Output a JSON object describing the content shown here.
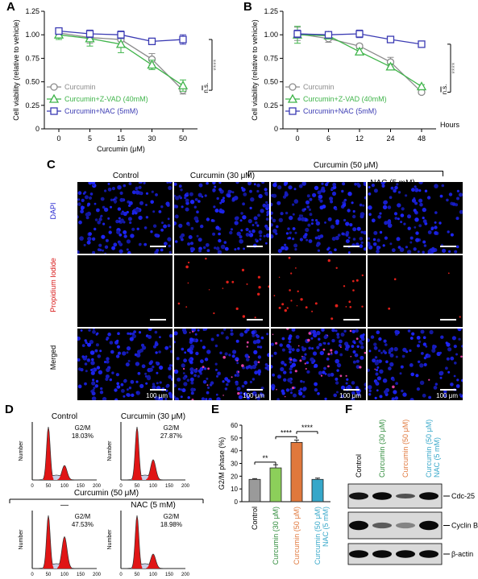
{
  "panels": {
    "A": "A",
    "B": "B",
    "C": "C",
    "D": "D",
    "E": "E",
    "F": "F"
  },
  "colors": {
    "curcumin": "#8c8c8c",
    "zvad": "#3fb44a",
    "nac": "#3a3ab3",
    "orange": "#e0783c",
    "cyan": "#36a7c9",
    "green": "#2e8b3a"
  },
  "chartA": {
    "chart_data": {
      "type": "line",
      "x": [
        0,
        5,
        15,
        30,
        50
      ],
      "xlabel": "Curcumin (μM)",
      "ylabel": "Cell viability (relative to vehicle)",
      "ylim": [
        0,
        1.25
      ],
      "yticks": [
        "0",
        "0.25",
        "0.50",
        "0.75",
        "1.00",
        "1.25"
      ],
      "xticks": [
        "0",
        "5",
        "15",
        "30",
        "50"
      ],
      "series": [
        {
          "name": "Curcumin",
          "values": [
            1.02,
            0.97,
            0.95,
            0.74,
            0.41
          ],
          "err": [
            0.04,
            0.06,
            0.08,
            0.06,
            0.04
          ]
        },
        {
          "name": "Curcumin+Z-VAD (40mM)",
          "values": [
            1.0,
            0.96,
            0.9,
            0.68,
            0.46
          ],
          "err": [
            0.05,
            0.08,
            0.09,
            0.05,
            0.06
          ]
        },
        {
          "name": "Curcumin+NAC (5mM)",
          "values": [
            1.04,
            1.01,
            1.0,
            0.93,
            0.95
          ],
          "err": [
            0.03,
            0.04,
            0.04,
            0.02,
            0.05
          ]
        }
      ]
    },
    "sig_top": "****",
    "sig_ns": "n.s."
  },
  "chartB": {
    "chart_data": {
      "type": "line",
      "x": [
        0,
        6,
        12,
        24,
        48
      ],
      "xlabel": "Hours",
      "ylabel": "Cell viability (relative to vehicle)",
      "ylim": [
        0,
        1.25
      ],
      "yticks": [
        "0",
        "0.25",
        "0.50",
        "0.75",
        "1.00",
        "1.25"
      ],
      "xticks": [
        "0",
        "6",
        "12",
        "24",
        "48"
      ],
      "series": [
        {
          "name": "Curcumin",
          "values": [
            1.01,
            0.96,
            0.88,
            0.71,
            0.39
          ],
          "err": [
            0.07,
            0.04,
            0.02,
            0.05,
            0.02
          ]
        },
        {
          "name": "Curcumin+Z-VAD (40mM)",
          "values": [
            1.0,
            0.99,
            0.82,
            0.66,
            0.45
          ],
          "err": [
            0.09,
            0.02,
            0.03,
            0.03,
            0.02
          ]
        },
        {
          "name": "Curcumin+NAC (5mM)",
          "values": [
            1.01,
            1.0,
            1.01,
            0.95,
            0.9
          ],
          "err": [
            0.04,
            0.03,
            0.04,
            0.02,
            0.02
          ]
        }
      ]
    },
    "sig_top": "****",
    "sig_ns": "n.s."
  },
  "microscopy": {
    "group_header": "Curcumin (50 μM)",
    "columns": [
      "Control",
      "Curcumin (30 μM)",
      "—",
      "NAC (5 mM)"
    ],
    "rows": [
      "DAPI",
      "Propidium Iodide",
      "Merged"
    ],
    "scale": "100 μm"
  },
  "flow": {
    "top_left": {
      "title": "Control",
      "phase": "G2/M",
      "value": "18.03%"
    },
    "top_right": {
      "title": "Curcumin (30 μM)",
      "phase": "G2/M",
      "value": "27.87%"
    },
    "group_header": "Curcumin (50 μM)",
    "bottom_left": {
      "title": "—",
      "phase": "G2/M",
      "value": "47.53%"
    },
    "bottom_right": {
      "title": "NAC (5 mM)",
      "phase": "G2/M",
      "value": "18.98%"
    },
    "ylabel": "Number",
    "xticks": [
      "0",
      "50",
      "100",
      "150",
      "200"
    ]
  },
  "chartE": {
    "chart_data": {
      "type": "bar",
      "categories": [
        "Control",
        "Curcumin (30 μM)",
        "Curcumin (50 μM)",
        "Curcumin (50 μM) NAC (5 mM)"
      ],
      "values": [
        17.5,
        26.5,
        46.5,
        17.5
      ],
      "err": [
        0.6,
        2.5,
        1.8,
        1.0
      ],
      "ylabel": "G2/M phase (%)",
      "ylim": [
        0,
        60
      ],
      "yticks": [
        "0",
        "10",
        "20",
        "30",
        "40",
        "50",
        "60"
      ]
    },
    "sig": [
      "**",
      "****",
      "****"
    ]
  },
  "western": {
    "lanes": [
      "Control",
      "Curcumin (30 μM)",
      "Curcumin (50 μM)",
      "Curcumin (50 μM) NAC (5 mM)"
    ],
    "bands": [
      "Cdc-25",
      "Cyclin B1",
      "β-actin"
    ],
    "intensity": [
      [
        0.9,
        0.95,
        0.6,
        0.95
      ],
      [
        0.95,
        0.55,
        0.35,
        0.95
      ],
      [
        0.95,
        0.95,
        0.95,
        0.95
      ]
    ]
  }
}
